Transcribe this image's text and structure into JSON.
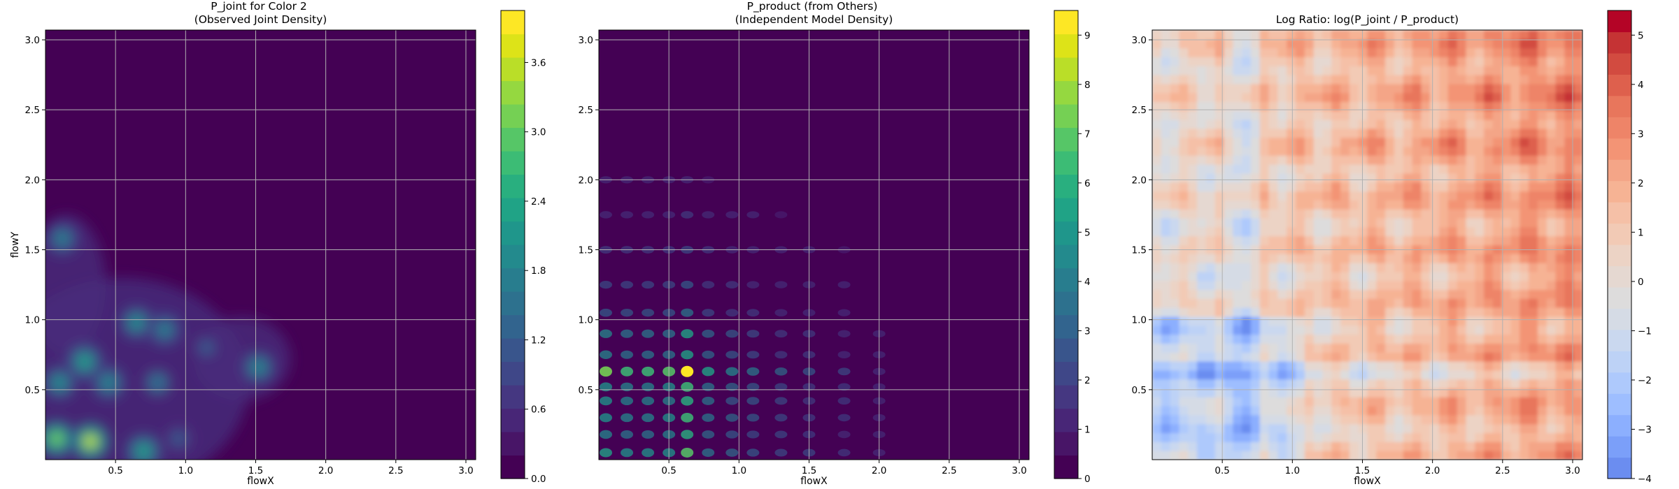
{
  "chart_data": [
    {
      "type": "heatmap",
      "title": "P_joint for Color 2\n(Observed Joint Density)",
      "xlabel": "flowX",
      "ylabel": "flowY",
      "xlim": [
        0.0,
        3.07
      ],
      "ylim": [
        0.0,
        3.07
      ],
      "xticks": [
        0.5,
        1.0,
        1.5,
        2.0,
        2.5,
        3.0
      ],
      "xtick_labels": [
        "0.5",
        "1.0",
        "1.5",
        "2.0",
        "2.5",
        "3.0"
      ],
      "yticks": [
        0.5,
        1.0,
        1.5,
        2.0,
        2.5,
        3.0
      ],
      "ytick_labels": [
        "0.5",
        "1.0",
        "1.5",
        "2.0",
        "2.5",
        "3.0"
      ],
      "grid": true,
      "colormap": "viridis",
      "colorbar": {
        "vmin": 0.0,
        "vmax": 4.05,
        "ticks": [
          0.0,
          0.6,
          1.2,
          1.8,
          2.4,
          3.0,
          3.6
        ],
        "tick_labels": [
          "0.0",
          "0.6",
          "1.2",
          "1.8",
          "2.4",
          "3.0",
          "3.6"
        ]
      },
      "density_peaks": [
        {
          "x": 0.08,
          "y": 0.15,
          "value": 3.4
        },
        {
          "x": 0.32,
          "y": 0.13,
          "value": 3.9
        },
        {
          "x": 0.28,
          "y": 0.7,
          "value": 2.6
        },
        {
          "x": 0.1,
          "y": 0.55,
          "value": 2.2
        },
        {
          "x": 0.12,
          "y": 1.58,
          "value": 2.0
        },
        {
          "x": 0.45,
          "y": 0.55,
          "value": 2.1
        },
        {
          "x": 0.65,
          "y": 0.98,
          "value": 2.2
        },
        {
          "x": 0.85,
          "y": 0.93,
          "value": 2.0
        },
        {
          "x": 0.7,
          "y": 0.06,
          "value": 2.5
        },
        {
          "x": 0.8,
          "y": 0.55,
          "value": 1.7
        },
        {
          "x": 1.52,
          "y": 0.66,
          "value": 2.1
        },
        {
          "x": 1.15,
          "y": 0.8,
          "value": 1.3
        },
        {
          "x": 0.95,
          "y": 0.15,
          "value": 1.3
        }
      ]
    },
    {
      "type": "heatmap",
      "title": "P_product (from Others)\n(Independent Model Density)",
      "xlabel": "flowX",
      "ylabel": "",
      "xlim": [
        0.0,
        3.07
      ],
      "ylim": [
        0.0,
        3.07
      ],
      "xticks": [
        0.5,
        1.0,
        1.5,
        2.0,
        2.5,
        3.0
      ],
      "xtick_labels": [
        "0.5",
        "1.0",
        "1.5",
        "2.0",
        "2.5",
        "3.0"
      ],
      "yticks": [
        0.5,
        1.0,
        1.5,
        2.0,
        2.5,
        3.0
      ],
      "ytick_labels": [
        "0.5",
        "1.0",
        "1.5",
        "2.0",
        "2.5",
        "3.0"
      ],
      "grid": true,
      "colormap": "viridis",
      "colorbar": {
        "vmin": 0.0,
        "vmax": 9.5,
        "ticks": [
          0,
          1,
          2,
          3,
          4,
          5,
          6,
          7,
          8,
          9
        ],
        "tick_labels": [
          "0",
          "1",
          "2",
          "3",
          "4",
          "5",
          "6",
          "7",
          "8",
          "9"
        ]
      },
      "marginal_x_peaks": [
        {
          "x": 0.05,
          "w": 1.0
        },
        {
          "x": 0.2,
          "w": 0.85
        },
        {
          "x": 0.35,
          "w": 0.85
        },
        {
          "x": 0.5,
          "w": 0.9
        },
        {
          "x": 0.63,
          "w": 1.3
        },
        {
          "x": 0.78,
          "w": 0.7
        },
        {
          "x": 0.95,
          "w": 0.55
        },
        {
          "x": 1.1,
          "w": 0.45
        },
        {
          "x": 1.3,
          "w": 0.35
        },
        {
          "x": 1.5,
          "w": 0.3
        },
        {
          "x": 1.75,
          "w": 0.2
        },
        {
          "x": 2.0,
          "w": 0.1
        }
      ],
      "marginal_y_peaks": [
        {
          "y": 0.05,
          "w": 0.9
        },
        {
          "y": 0.18,
          "w": 0.75
        },
        {
          "y": 0.3,
          "w": 0.85
        },
        {
          "y": 0.42,
          "w": 0.8
        },
        {
          "y": 0.52,
          "w": 0.85
        },
        {
          "y": 0.63,
          "w": 1.35
        },
        {
          "y": 0.75,
          "w": 0.7
        },
        {
          "y": 0.9,
          "w": 0.7
        },
        {
          "y": 1.05,
          "w": 0.45
        },
        {
          "y": 1.25,
          "w": 0.35
        },
        {
          "y": 1.5,
          "w": 0.25
        },
        {
          "y": 1.75,
          "w": 0.15
        },
        {
          "y": 2.0,
          "w": 0.08
        }
      ]
    },
    {
      "type": "heatmap",
      "title": "Log Ratio: log(P_joint / P_product)",
      "xlabel": "flowX",
      "ylabel": "",
      "xlim": [
        0.0,
        3.07
      ],
      "ylim": [
        0.0,
        3.07
      ],
      "xticks": [
        0.5,
        1.0,
        1.5,
        2.0,
        2.5,
        3.0
      ],
      "xtick_labels": [
        "0.5",
        "1.0",
        "1.5",
        "2.0",
        "2.5",
        "3.0"
      ],
      "yticks": [
        0.5,
        1.0,
        1.5,
        2.0,
        2.5,
        3.0
      ],
      "ytick_labels": [
        "0.5",
        "1.0",
        "1.5",
        "2.0",
        "2.5",
        "3.0"
      ],
      "grid": true,
      "colormap": "coolwarm",
      "colorbar": {
        "vmin": -4.0,
        "vmax": 5.5,
        "ticks": [
          -4,
          -3,
          -2,
          -1,
          0,
          1,
          2,
          3,
          4,
          5
        ],
        "tick_labels": [
          "−4",
          "−3",
          "−2",
          "−1",
          "0",
          "1",
          "2",
          "3",
          "4",
          "5"
        ]
      },
      "value_range_observed": [
        -3.5,
        5.3
      ]
    }
  ]
}
